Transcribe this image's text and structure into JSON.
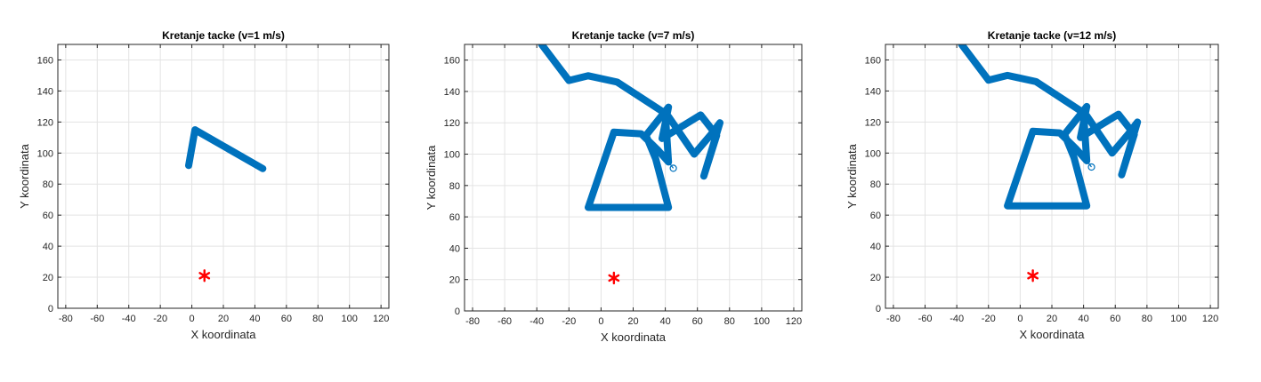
{
  "chart_data": [
    {
      "type": "scatter",
      "title": "Kretanje tacke (v=1 m/s)",
      "xlabel": "X koordinata",
      "ylabel": "Y koordinata",
      "xlim": [
        -85,
        125
      ],
      "ylim": [
        0,
        170
      ],
      "xticks": [
        -80,
        -60,
        -40,
        -20,
        0,
        20,
        40,
        60,
        80,
        100,
        120
      ],
      "yticks": [
        0,
        20,
        40,
        60,
        80,
        100,
        120,
        140,
        160
      ],
      "grid": true,
      "series": [
        {
          "marker": "filled-circle",
          "color": "#0072BD",
          "path": [
            [
              -2,
              92
            ],
            [
              2,
              115
            ],
            [
              45,
              90
            ]
          ]
        }
      ],
      "target": {
        "marker": "asterisk",
        "color": "#FF0000",
        "point": [
          8,
          21
        ]
      }
    },
    {
      "type": "scatter",
      "title": "Kretanje tacke (v=7 m/s)",
      "xlabel": "X koordinata",
      "ylabel": "Y koordinata",
      "xlim": [
        -85,
        125
      ],
      "ylim": [
        0,
        170
      ],
      "xticks": [
        -80,
        -60,
        -40,
        -20,
        0,
        20,
        40,
        60,
        80,
        100,
        120
      ],
      "yticks": [
        0,
        20,
        40,
        60,
        80,
        100,
        120,
        140,
        160
      ],
      "grid": true,
      "series": [
        {
          "marker": "filled-circle",
          "color": "#0072BD",
          "path": [
            [
              -37,
              170
            ],
            [
              -20,
              147
            ],
            [
              -8,
              150
            ],
            [
              10,
              146
            ],
            [
              40,
              126
            ],
            [
              42,
              95
            ],
            [
              35,
              103
            ],
            [
              30,
              108
            ],
            [
              25,
              113
            ],
            [
              8,
              114
            ],
            [
              -8,
              66
            ],
            [
              42,
              66
            ],
            [
              34,
              97
            ],
            [
              28,
              112
            ],
            [
              42,
              130
            ],
            [
              38,
              110
            ],
            [
              62,
              125
            ],
            [
              72,
              112
            ],
            [
              64,
              86
            ],
            [
              74,
              120
            ],
            [
              68,
              112
            ],
            [
              58,
              100
            ],
            [
              42,
              124
            ]
          ]
        },
        {
          "marker": "thin-line",
          "color": "#0072BD",
          "path": [
            [
              42,
              95
            ],
            [
              45,
              91
            ]
          ]
        }
      ],
      "endpoint": {
        "marker": "open-circle",
        "color": "#0072BD",
        "point": [
          45,
          91
        ]
      },
      "target": {
        "marker": "asterisk",
        "color": "#FF0000",
        "point": [
          8,
          21
        ]
      }
    },
    {
      "type": "scatter",
      "title": "Kretanje tacke (v=12 m/s)",
      "xlabel": "X koordinata",
      "ylabel": "Y koordinata",
      "xlim": [
        -85,
        125
      ],
      "ylim": [
        0,
        170
      ],
      "xticks": [
        -80,
        -60,
        -40,
        -20,
        0,
        20,
        40,
        60,
        80,
        100,
        120
      ],
      "yticks": [
        0,
        20,
        40,
        60,
        80,
        100,
        120,
        140,
        160
      ],
      "grid": true,
      "series": [
        {
          "marker": "filled-circle",
          "color": "#0072BD",
          "path": [
            [
              -37,
              170
            ],
            [
              -20,
              147
            ],
            [
              -8,
              150
            ],
            [
              10,
              146
            ],
            [
              40,
              126
            ],
            [
              42,
              95
            ],
            [
              35,
              103
            ],
            [
              30,
              108
            ],
            [
              25,
              113
            ],
            [
              8,
              114
            ],
            [
              -8,
              66
            ],
            [
              42,
              66
            ],
            [
              34,
              97
            ],
            [
              28,
              112
            ],
            [
              42,
              130
            ],
            [
              38,
              110
            ],
            [
              62,
              125
            ],
            [
              72,
              112
            ],
            [
              64,
              86
            ],
            [
              74,
              120
            ],
            [
              68,
              112
            ],
            [
              58,
              100
            ],
            [
              42,
              124
            ]
          ]
        },
        {
          "marker": "thin-line",
          "color": "#0072BD",
          "path": [
            [
              42,
              95
            ],
            [
              45,
              91
            ]
          ]
        }
      ],
      "endpoint": {
        "marker": "open-circle",
        "color": "#0072BD",
        "point": [
          45,
          91
        ]
      },
      "target": {
        "marker": "asterisk",
        "color": "#FF0000",
        "point": [
          8,
          21
        ]
      }
    }
  ]
}
